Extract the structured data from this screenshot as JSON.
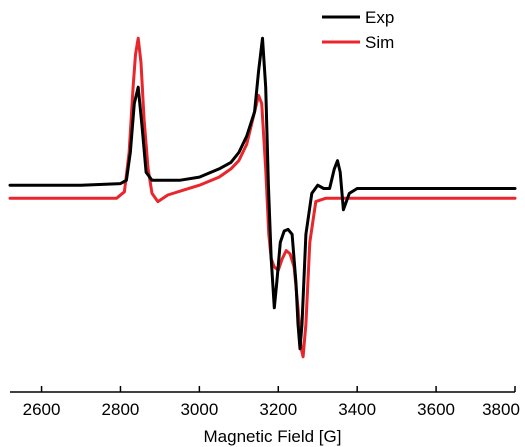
{
  "chart_data": {
    "type": "line",
    "title": "",
    "xlabel": "Magnetic Field [G]",
    "ylabel": "",
    "xlim": [
      2520,
      3800
    ],
    "ylim": [
      -1.1,
      0.95
    ],
    "x_ticks": [
      2600,
      2800,
      3000,
      3200,
      3400,
      3600,
      3800
    ],
    "x_tick_labels": [
      "2600",
      "2800",
      "3000",
      "3200",
      "3400",
      "3600",
      "3800"
    ],
    "y_axis_visible": false,
    "grid": false,
    "legend_position": "top-right",
    "series": [
      {
        "name": "Exp",
        "color": "#000000",
        "x": [
          2520,
          2700,
          2800,
          2815,
          2825,
          2835,
          2845,
          2855,
          2865,
          2880,
          2900,
          2950,
          3000,
          3050,
          3080,
          3100,
          3120,
          3140,
          3150,
          3160,
          3168,
          3175,
          3182,
          3190,
          3196,
          3205,
          3215,
          3225,
          3235,
          3245,
          3250,
          3255,
          3260,
          3270,
          3285,
          3300,
          3315,
          3330,
          3342,
          3350,
          3357,
          3365,
          3380,
          3400,
          3500,
          3600,
          3700,
          3800
        ],
        "y": [
          0.0,
          0.0,
          0.01,
          0.03,
          0.2,
          0.5,
          0.6,
          0.35,
          0.08,
          0.03,
          0.03,
          0.03,
          0.05,
          0.1,
          0.14,
          0.2,
          0.3,
          0.45,
          0.7,
          0.9,
          0.6,
          0.0,
          -0.45,
          -0.75,
          -0.6,
          -0.35,
          -0.28,
          -0.27,
          -0.3,
          -0.6,
          -0.85,
          -1.0,
          -0.85,
          -0.3,
          -0.05,
          0.0,
          -0.02,
          -0.02,
          0.1,
          0.15,
          0.08,
          -0.15,
          -0.05,
          -0.02,
          -0.02,
          -0.02,
          -0.02,
          -0.02
        ]
      },
      {
        "name": "Sim",
        "color": "#e8262b",
        "x": [
          2520,
          2700,
          2790,
          2810,
          2822,
          2832,
          2838,
          2845,
          2852,
          2860,
          2870,
          2880,
          2895,
          2920,
          2960,
          3000,
          3050,
          3080,
          3100,
          3120,
          3135,
          3150,
          3158,
          3168,
          3176,
          3182,
          3190,
          3200,
          3210,
          3220,
          3230,
          3240,
          3250,
          3258,
          3263,
          3270,
          3280,
          3295,
          3320,
          3400,
          3500,
          3600,
          3800
        ],
        "y": [
          -0.08,
          -0.08,
          -0.08,
          -0.04,
          0.2,
          0.6,
          0.8,
          0.9,
          0.75,
          0.4,
          0.1,
          -0.05,
          -0.1,
          -0.06,
          -0.03,
          0.0,
          0.05,
          0.1,
          0.15,
          0.25,
          0.4,
          0.55,
          0.5,
          0.1,
          -0.3,
          -0.45,
          -0.5,
          -0.52,
          -0.45,
          -0.4,
          -0.42,
          -0.5,
          -0.75,
          -1.0,
          -1.05,
          -0.85,
          -0.35,
          -0.1,
          -0.08,
          -0.08,
          -0.08,
          -0.08,
          -0.08
        ]
      }
    ]
  }
}
